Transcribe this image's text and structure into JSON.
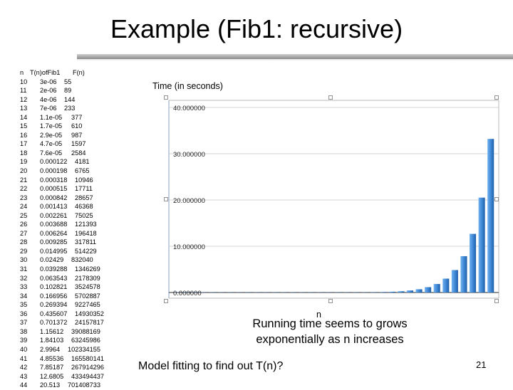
{
  "slide": {
    "title": "Example (Fib1: recursive)",
    "caption_line1": "Running time seems to grows",
    "caption_line2": "exponentially as n increases",
    "model_text": "Model fitting to find out T(n)?",
    "slide_number": "21"
  },
  "table": {
    "headers": [
      "n",
      "T(n)ofFib1",
      "F(n)"
    ],
    "rows": [
      [
        "10",
        "3e-06",
        "55"
      ],
      [
        "11",
        "2e-06",
        "89"
      ],
      [
        "12",
        "4e-06",
        "144"
      ],
      [
        "13",
        "7e-06",
        "233"
      ],
      [
        "14",
        "1.1e-05",
        "377"
      ],
      [
        "15",
        "1.7e-05",
        "610"
      ],
      [
        "16",
        "2.9e-05",
        "987"
      ],
      [
        "17",
        "4.7e-05",
        "1597"
      ],
      [
        "18",
        "7.6e-05",
        "2584"
      ],
      [
        "19",
        "0.000122",
        "4181"
      ],
      [
        "20",
        "0.000198",
        "6765"
      ],
      [
        "21",
        "0.000318",
        "10946"
      ],
      [
        "22",
        "0.000515",
        "17711"
      ],
      [
        "23",
        "0.000842",
        "28657"
      ],
      [
        "24",
        "0.001413",
        "46368"
      ],
      [
        "25",
        "0.002261",
        "75025"
      ],
      [
        "26",
        "0.003688",
        "121393"
      ],
      [
        "27",
        "0.006264",
        "196418"
      ],
      [
        "28",
        "0.009285",
        "317811"
      ],
      [
        "29",
        "0.014995",
        "514229"
      ],
      [
        "30",
        "0.02429",
        "832040"
      ],
      [
        "31",
        "0.039288",
        "1346269"
      ],
      [
        "32",
        "0.063543",
        "2178309"
      ],
      [
        "33",
        "0.102821",
        "3524578"
      ],
      [
        "34",
        "0.166956",
        "5702887"
      ],
      [
        "35",
        "0.269394",
        "9227465"
      ],
      [
        "36",
        "0.435607",
        "14930352"
      ],
      [
        "37",
        "0.701372",
        "24157817"
      ],
      [
        "38",
        "1.15612",
        "39088169"
      ],
      [
        "39",
        "1.84103",
        "63245986"
      ],
      [
        "40",
        "2.9964",
        "102334155"
      ],
      [
        "41",
        "4.85536",
        "165580141"
      ],
      [
        "42",
        "7.85187",
        "267914296"
      ],
      [
        "43",
        "12.6805",
        "433494437"
      ],
      [
        "44",
        "20.513",
        "701408733"
      ]
    ]
  },
  "chart_data": {
    "type": "bar",
    "ylabel": "Time (in seconds)",
    "xlabel": "n",
    "ylim": [
      0,
      40
    ],
    "y_ticks": [
      "0.000000",
      "10.000000",
      "20.000000",
      "30.000000",
      "40.000000"
    ],
    "y_tick_values": [
      0,
      10,
      20,
      30,
      40
    ],
    "grid": true,
    "bar_color": "#3d86d4",
    "values": [
      3e-06,
      2e-06,
      4e-06,
      7e-06,
      1.1e-05,
      1.7e-05,
      2.9e-05,
      4.7e-05,
      7.6e-05,
      0.000122,
      0.000198,
      0.000318,
      0.000515,
      0.000842,
      0.001413,
      0.002261,
      0.003688,
      0.006264,
      0.009285,
      0.014995,
      0.02429,
      0.039288,
      0.063543,
      0.102821,
      0.166956,
      0.269394,
      0.435607,
      0.701372,
      1.15612,
      1.84103,
      2.9964,
      4.85536,
      7.85187,
      12.6805,
      20.513,
      33.2
    ]
  }
}
